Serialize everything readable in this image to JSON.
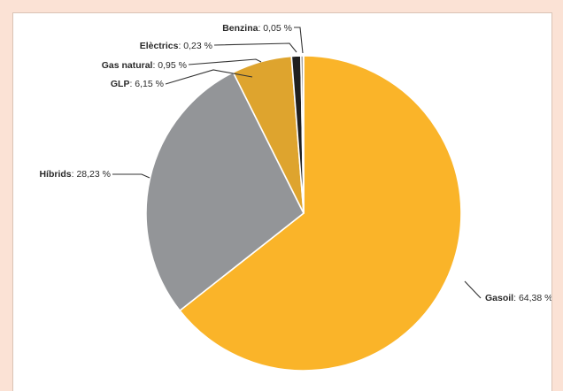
{
  "chart_data": {
    "type": "pie",
    "slices": [
      {
        "name": "Gasoil",
        "value": 64.38,
        "display": "64,38 %",
        "color": "#fab429"
      },
      {
        "name": "Híbrids",
        "value": 28.23,
        "display": "28,23 %",
        "color": "#939598"
      },
      {
        "name": "GLP",
        "value": 6.15,
        "display": "6,15 %",
        "color": "#dea42e"
      },
      {
        "name": "Gas natural",
        "value": 0.95,
        "display": "0,95 %",
        "color": "#1f1f1f"
      },
      {
        "name": "Elèctrics",
        "value": 0.23,
        "display": "0,23 %",
        "color": "#5a5a5a"
      },
      {
        "name": "Benzina",
        "value": 0.05,
        "display": "0,05 %",
        "color": "#e9c98a"
      }
    ],
    "legend": false
  }
}
